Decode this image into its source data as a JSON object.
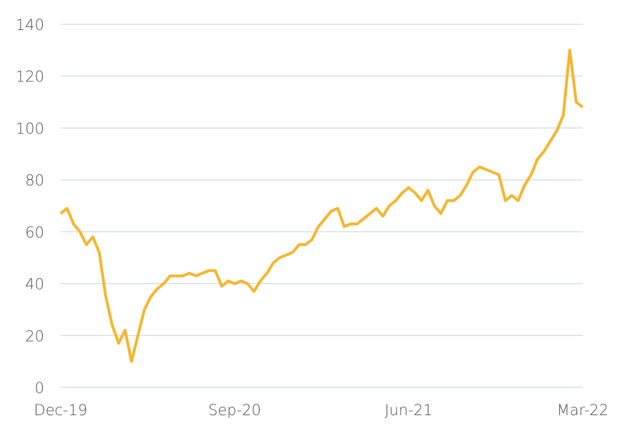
{
  "chart_data": {
    "type": "line",
    "categories": [
      "Dec-19",
      null,
      null,
      null,
      null,
      null,
      null,
      null,
      null,
      null,
      null,
      null,
      null,
      null,
      null,
      null,
      null,
      null,
      null,
      null,
      null,
      null,
      null,
      null,
      null,
      null,
      null,
      "Sep-20",
      null,
      null,
      null,
      null,
      null,
      null,
      null,
      null,
      null,
      null,
      null,
      null,
      null,
      null,
      null,
      null,
      null,
      null,
      null,
      null,
      null,
      null,
      null,
      null,
      null,
      null,
      "Jun-21",
      null,
      null,
      null,
      null,
      null,
      null,
      null,
      null,
      null,
      null,
      null,
      null,
      null,
      null,
      null,
      null,
      null,
      null,
      null,
      null,
      null,
      null,
      null,
      null,
      null,
      null,
      "Mar-22"
    ],
    "series": [
      {
        "color": "#f5b731",
        "values": [
          67,
          69,
          63,
          60,
          55,
          58,
          52,
          35,
          24,
          17,
          22,
          10,
          20,
          30,
          35,
          38,
          40,
          43,
          43,
          43,
          44,
          43,
          44,
          45,
          45,
          39,
          41,
          40,
          41,
          40,
          37,
          41,
          44,
          48,
          50,
          51,
          52,
          55,
          55,
          57,
          62,
          65,
          68,
          69,
          62,
          63,
          63,
          65,
          67,
          69,
          66,
          70,
          72,
          75,
          77,
          75,
          72,
          76,
          70,
          67,
          72,
          72,
          74,
          78,
          83,
          85,
          84,
          83,
          82,
          72,
          74,
          72,
          78,
          82,
          88,
          91,
          95,
          99,
          105,
          130,
          110,
          108
        ]
      }
    ],
    "ylim": [
      0,
      140
    ],
    "yticks": [
      0,
      20,
      40,
      60,
      80,
      100,
      120,
      140
    ],
    "grid": true
  }
}
